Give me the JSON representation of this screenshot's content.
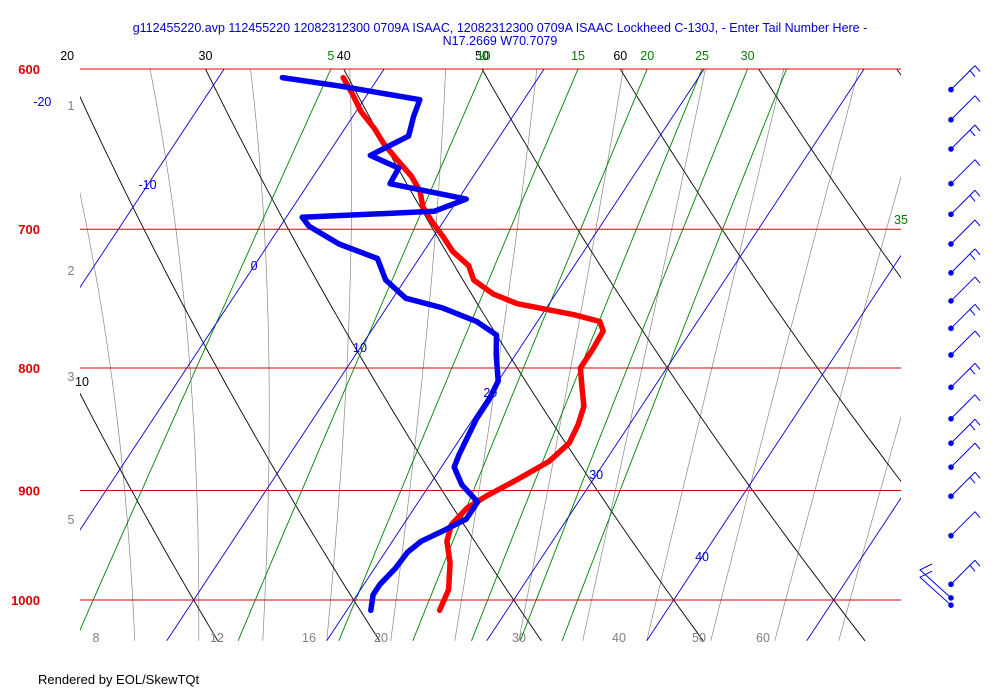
{
  "title_line1": "g112455220.avp 112455220 12082312300 0709A ISAAC, 12082312300 0709A ISAAC Lockheed C-130J, - Enter Tail Number Here -",
  "title_line2": "N17.2669 W70.7079",
  "footer": "Rendered by EOL/SkewTQt",
  "colors": {
    "isobar": "#dd0000",
    "temperature": "#ff0000",
    "dewpoint": "#0000ee",
    "isotherm": "#0000cc",
    "dry_adiabat": "#000000",
    "moist_adiabat": "#888888",
    "mixing_ratio": "#008000",
    "height_label": "#808080",
    "wind_barb": "#0000ee",
    "title": "#0000cc"
  },
  "chart_data": {
    "type": "skew-t",
    "pressure_range": [
      1020,
      600
    ],
    "temperature_range_at_bottom": [
      5,
      42
    ],
    "isobars": [
      600,
      700,
      800,
      900,
      1000
    ],
    "isotherm_labels": [
      -20,
      -10,
      0,
      10,
      20,
      30,
      40
    ],
    "dry_adiabat_labels": [
      10,
      20,
      30,
      40,
      50,
      60
    ],
    "mixing_ratio_labels": [
      5,
      10,
      15,
      20,
      25,
      30,
      35
    ],
    "moist_adiabat_labels": [
      8,
      12,
      16,
      20,
      30,
      40,
      50,
      60
    ],
    "height_labels_km": [
      1,
      2,
      3,
      5
    ],
    "temperature_profile": {
      "p": [
        1010,
        990,
        965,
        945,
        930,
        915,
        905,
        890,
        875,
        860,
        845,
        830,
        815,
        800,
        785,
        772,
        765,
        760,
        752,
        745,
        735,
        725,
        715,
        705,
        695,
        685,
        675,
        665,
        655,
        645,
        635,
        625,
        615,
        605
      ],
      "t": [
        25.8,
        25.5,
        24.5,
        23.4,
        23.0,
        23.3,
        24.0,
        25.3,
        26.5,
        27.0,
        26.8,
        26.4,
        25.5,
        24.6,
        24.6,
        24.5,
        23.9,
        22.0,
        18.0,
        16.1,
        14.3,
        13.4,
        11.8,
        10.6,
        9.3,
        8.1,
        7.3,
        6.1,
        4.6,
        3.1,
        1.8,
        0.3,
        -0.9,
        -2.2
      ]
    },
    "dewpoint_profile": {
      "p": [
        1010,
        995,
        985,
        970,
        955,
        945,
        935,
        925,
        910,
        895,
        880,
        870,
        855,
        840,
        825,
        810,
        800,
        790,
        775,
        765,
        755,
        748,
        735,
        720,
        710,
        698,
        692,
        688,
        680,
        670,
        660,
        652,
        640,
        628,
        618,
        610,
        605
      ],
      "td": [
        21.5,
        21.0,
        21.0,
        21.3,
        21.4,
        21.8,
        22.8,
        23.7,
        23.7,
        22.0,
        20.8,
        20.6,
        20.4,
        20.2,
        20.2,
        20.0,
        19.4,
        18.8,
        18.0,
        16.2,
        13.5,
        10.8,
        8.8,
        7.4,
        4.4,
        1.8,
        1.0,
        9.0,
        10.5,
        5.1,
        5.0,
        2.7,
        4.3,
        3.8,
        3.5,
        -2.0,
        -6.0
      ]
    },
    "wind_barb_pressures": [
      1005,
      998,
      985,
      940,
      905,
      880,
      860,
      840,
      815,
      790,
      770,
      750,
      730,
      710,
      690,
      670,
      648,
      630,
      612
    ]
  }
}
